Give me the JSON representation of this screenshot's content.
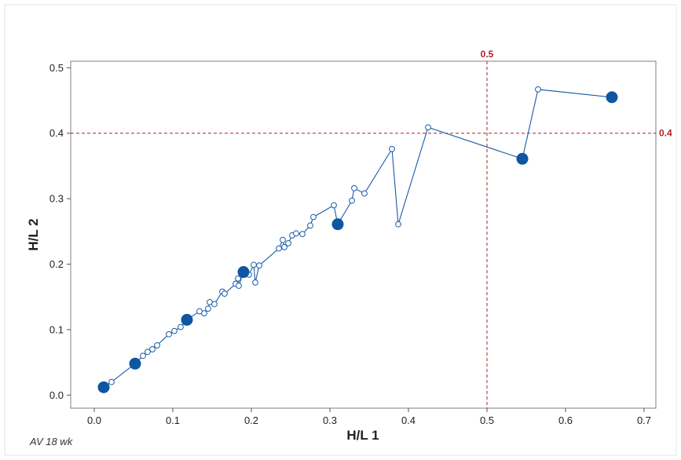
{
  "chart_data": {
    "type": "scatter",
    "title": "",
    "xlabel": "H/L  1",
    "ylabel": "H/L 2",
    "xlim": [
      -0.03,
      0.715
    ],
    "ylim": [
      -0.02,
      0.51
    ],
    "x_ticks": [
      0.0,
      0.1,
      0.2,
      0.3,
      0.4,
      0.5,
      0.6,
      0.7
    ],
    "x_tick_labels": [
      "0.0",
      "0.1",
      "0.2",
      "0.3",
      "0.4",
      "0.5",
      "0.6",
      "0.7"
    ],
    "y_ticks": [
      0.0,
      0.1,
      0.2,
      0.3,
      0.4,
      0.5
    ],
    "y_tick_labels": [
      "0.0",
      "0.1",
      "0.2",
      "0.3",
      "0.4",
      "0.5"
    ],
    "grid": false,
    "legend": "none",
    "reference_lines": [
      {
        "orientation": "vertical",
        "value": 0.5,
        "label": "0.5",
        "color": "#b22222"
      },
      {
        "orientation": "horizontal",
        "value": 0.4,
        "label": "0.4",
        "color": "#b22222"
      }
    ],
    "series": [
      {
        "style": "line-with-open-markers",
        "color": "#1a5ba6",
        "points": [
          [
            0.012,
            0.012
          ],
          [
            0.022,
            0.02
          ],
          [
            0.052,
            0.048
          ],
          [
            0.062,
            0.06
          ],
          [
            0.068,
            0.066
          ],
          [
            0.074,
            0.07
          ],
          [
            0.08,
            0.076
          ],
          [
            0.095,
            0.093
          ],
          [
            0.102,
            0.098
          ],
          [
            0.11,
            0.104
          ],
          [
            0.118,
            0.115
          ],
          [
            0.134,
            0.128
          ],
          [
            0.14,
            0.125
          ],
          [
            0.145,
            0.132
          ],
          [
            0.147,
            0.142
          ],
          [
            0.153,
            0.139
          ],
          [
            0.163,
            0.158
          ],
          [
            0.166,
            0.155
          ],
          [
            0.18,
            0.17
          ],
          [
            0.183,
            0.178
          ],
          [
            0.184,
            0.167
          ],
          [
            0.19,
            0.188
          ],
          [
            0.197,
            0.184
          ],
          [
            0.203,
            0.199
          ],
          [
            0.205,
            0.172
          ],
          [
            0.21,
            0.198
          ],
          [
            0.235,
            0.224
          ],
          [
            0.24,
            0.237
          ],
          [
            0.242,
            0.226
          ],
          [
            0.247,
            0.232
          ],
          [
            0.252,
            0.244
          ],
          [
            0.257,
            0.247
          ],
          [
            0.265,
            0.246
          ],
          [
            0.275,
            0.259
          ],
          [
            0.279,
            0.272
          ],
          [
            0.305,
            0.29
          ],
          [
            0.31,
            0.261
          ],
          [
            0.328,
            0.297
          ],
          [
            0.331,
            0.316
          ],
          [
            0.344,
            0.308
          ],
          [
            0.379,
            0.376
          ],
          [
            0.387,
            0.261
          ],
          [
            0.425,
            0.409
          ],
          [
            0.545,
            0.361
          ],
          [
            0.565,
            0.467
          ],
          [
            0.659,
            0.455
          ]
        ]
      },
      {
        "style": "filled-markers",
        "color": "#0f56a0",
        "points": [
          [
            0.012,
            0.012
          ],
          [
            0.052,
            0.048
          ],
          [
            0.118,
            0.115
          ],
          [
            0.19,
            0.188
          ],
          [
            0.31,
            0.261
          ],
          [
            0.545,
            0.361
          ],
          [
            0.659,
            0.455
          ]
        ]
      }
    ]
  },
  "footnote": "AV 18 wk"
}
